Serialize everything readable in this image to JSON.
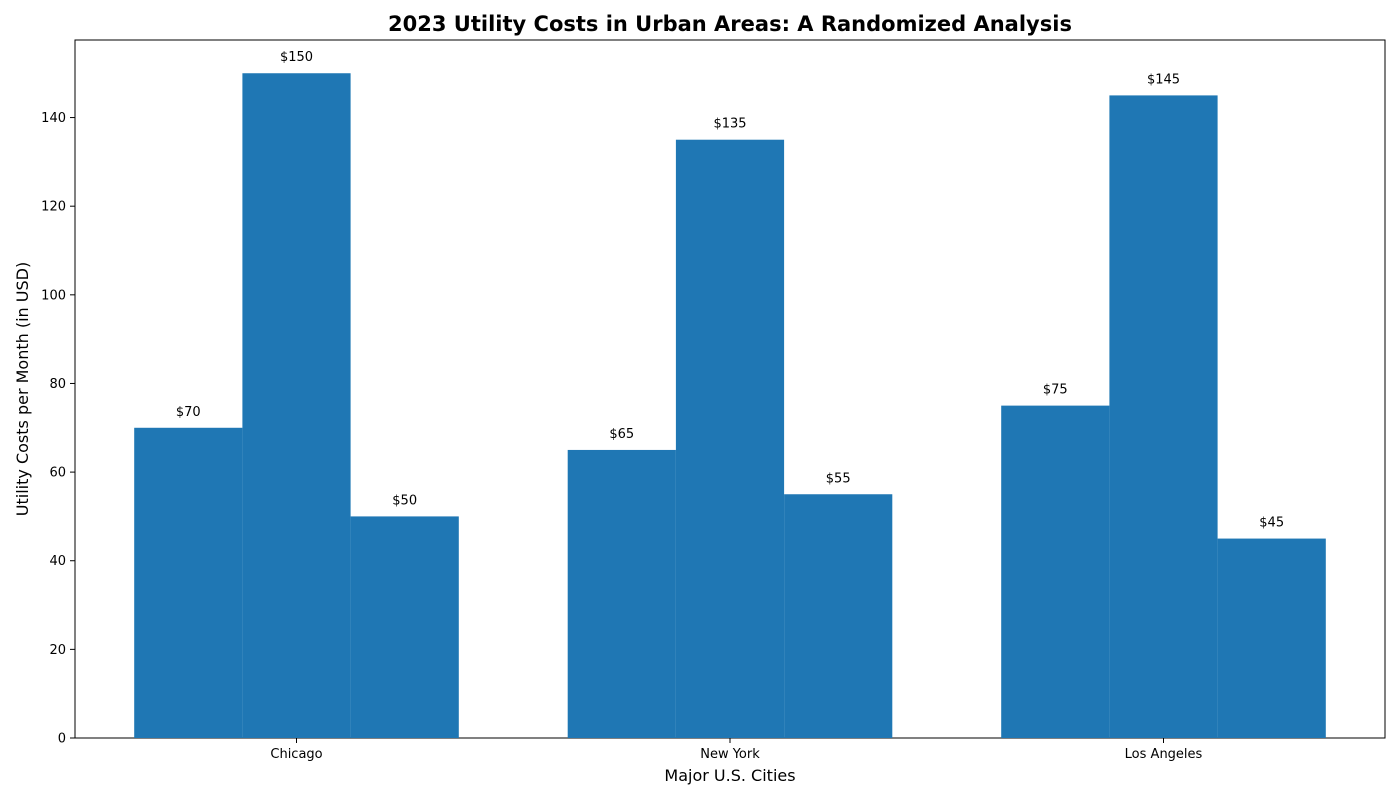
{
  "chart_data": {
    "type": "bar",
    "title": "2023 Utility Costs in Urban Areas: A Randomized Analysis",
    "xlabel": "Major U.S. Cities",
    "ylabel": "Utility Costs per Month (in USD)",
    "categories": [
      "Chicago",
      "New York",
      "Los Angeles"
    ],
    "series": [
      {
        "values": [
          70,
          65,
          75
        ],
        "labels": [
          "$70",
          "$65",
          "$75"
        ]
      },
      {
        "values": [
          150,
          135,
          145
        ],
        "labels": [
          "$150",
          "$135",
          "$145"
        ]
      },
      {
        "values": [
          50,
          55,
          45
        ],
        "labels": [
          "$50",
          "$55",
          "$45"
        ]
      }
    ],
    "ylim": [
      0,
      157.5
    ],
    "yticks": [
      "0",
      "20",
      "40",
      "60",
      "80",
      "100",
      "120",
      "140"
    ],
    "grid": false,
    "bar_color": "#1f77b4"
  }
}
